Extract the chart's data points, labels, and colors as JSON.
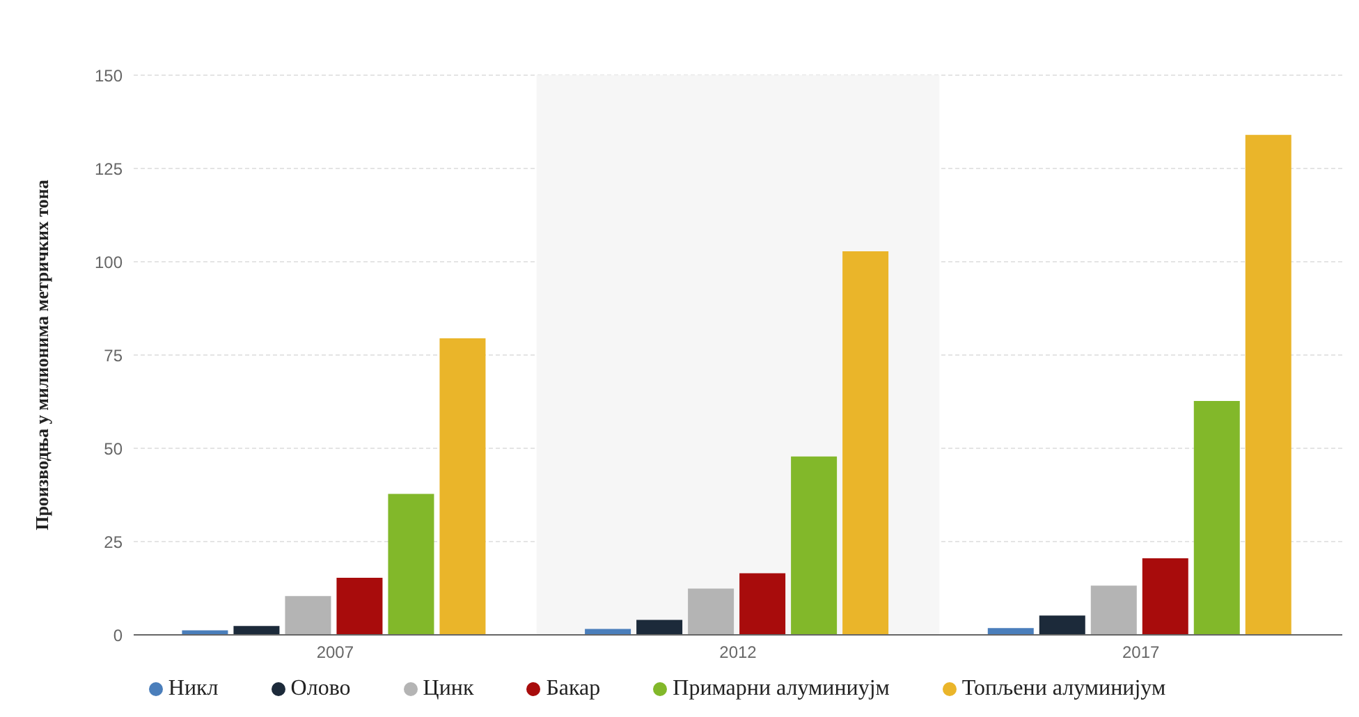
{
  "chart_data": {
    "type": "bar",
    "ylabel": "Производња у милионима метричких тона",
    "categories": [
      "2007",
      "2012",
      "2017"
    ],
    "series": [
      {
        "name": "Никл",
        "color": "#4a7ebb",
        "values": [
          1.2,
          1.6,
          1.8
        ]
      },
      {
        "name": "Олово",
        "color": "#1c2a3a",
        "values": [
          2.4,
          4,
          5.2
        ]
      },
      {
        "name": "Цинк",
        "color": "#b4b4b4",
        "values": [
          10.4,
          12.4,
          13.2
        ]
      },
      {
        "name": "Бакар",
        "color": "#a80c0c",
        "values": [
          15.3,
          16.5,
          20.5
        ]
      },
      {
        "name": "Примарни алуминиујм",
        "color": "#82b82a",
        "values": [
          37.8,
          47.8,
          62.7
        ]
      },
      {
        "name": "Топљени алуминијум",
        "color": "#eab52a",
        "values": [
          79.5,
          102.8,
          134
        ]
      }
    ],
    "ylim": [
      0,
      150
    ],
    "yticks": [
      0,
      25,
      50,
      75,
      100,
      125,
      150
    ],
    "grid": "y",
    "legend": "bottom",
    "bands": [
      {
        "axis": "x",
        "from": "2012",
        "to": "2012",
        "color": "#f6f6f6"
      }
    ]
  }
}
